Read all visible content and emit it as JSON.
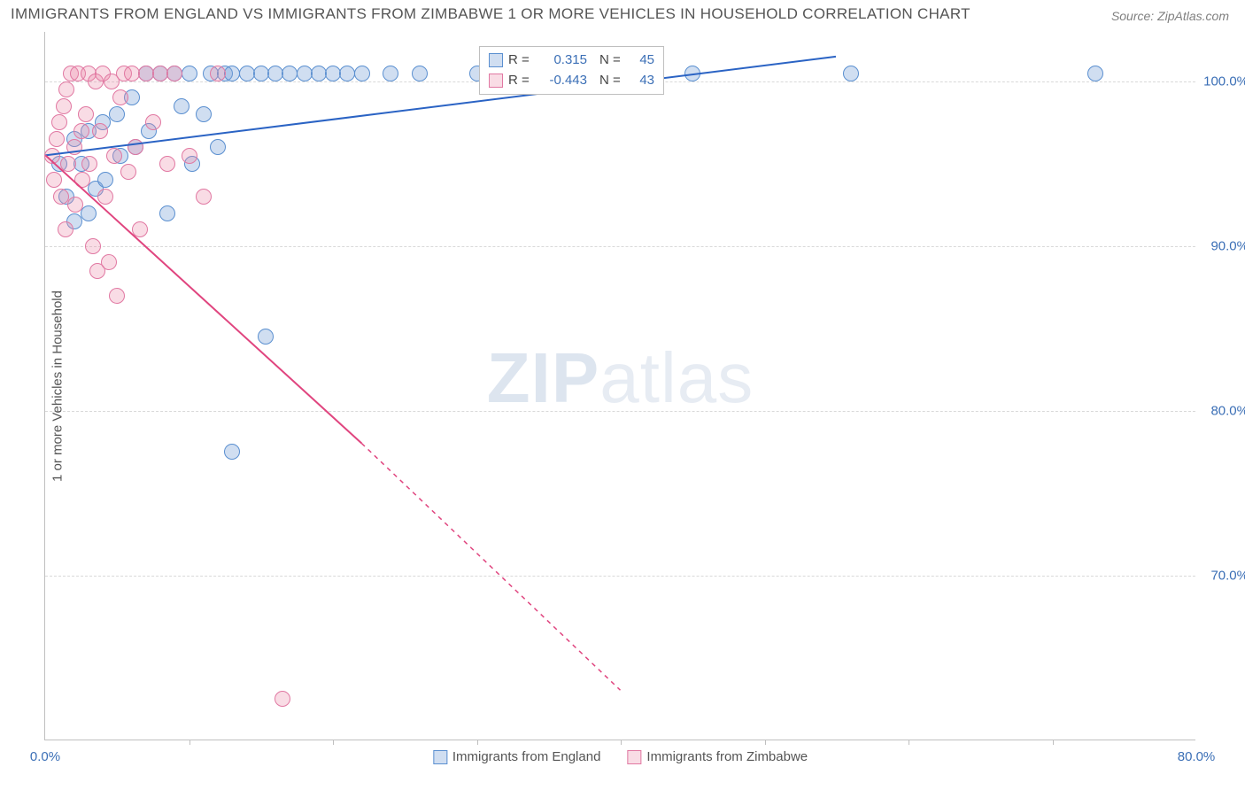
{
  "title": "IMMIGRANTS FROM ENGLAND VS IMMIGRANTS FROM ZIMBABWE 1 OR MORE VEHICLES IN HOUSEHOLD CORRELATION CHART",
  "source": "Source: ZipAtlas.com",
  "ylabel": "1 or more Vehicles in Household",
  "watermark_a": "ZIP",
  "watermark_b": "atlas",
  "chart": {
    "type": "scatter",
    "xlim": [
      0,
      80
    ],
    "ylim": [
      60,
      103
    ],
    "xticks": [
      0,
      80
    ],
    "xtick_labels": [
      "0.0%",
      "80.0%"
    ],
    "xminor_step": 10,
    "yticks": [
      70,
      80,
      90,
      100
    ],
    "ytick_labels": [
      "70.0%",
      "80.0%",
      "90.0%",
      "100.0%"
    ],
    "grid_color": "#d9d9d9",
    "axis_color": "#bfbfbf",
    "tick_label_color": "#3b6fb6",
    "background_color": "#ffffff"
  },
  "series": [
    {
      "id": "england",
      "label": "Immigrants from England",
      "fill": "rgba(120,160,215,0.35)",
      "stroke": "#5a8fd0",
      "line_stroke": "#2a63c4",
      "r_label": "R =",
      "r_value": "0.315",
      "n_label": "N =",
      "n_value": "45",
      "trend": {
        "x1": 0,
        "y1": 95.5,
        "x2": 55,
        "y2": 101.5,
        "dash_after_x": 80
      },
      "marker_r": 9,
      "points": [
        [
          1,
          95
        ],
        [
          1.5,
          93
        ],
        [
          2,
          96.5
        ],
        [
          2.5,
          95
        ],
        [
          3,
          97
        ],
        [
          3,
          92
        ],
        [
          3.5,
          93.5
        ],
        [
          4,
          97.5
        ],
        [
          4.2,
          94
        ],
        [
          5,
          98
        ],
        [
          5.2,
          95.5
        ],
        [
          6,
          99
        ],
        [
          6.3,
          96
        ],
        [
          7,
          100.5
        ],
        [
          7.2,
          97
        ],
        [
          8,
          100.5
        ],
        [
          8.5,
          92
        ],
        [
          9,
          100.5
        ],
        [
          9.5,
          98.5
        ],
        [
          10,
          100.5
        ],
        [
          10.2,
          95
        ],
        [
          11,
          98
        ],
        [
          11.5,
          100.5
        ],
        [
          12,
          96
        ],
        [
          12.5,
          100.5
        ],
        [
          13,
          100.5
        ],
        [
          14,
          100.5
        ],
        [
          15,
          100.5
        ],
        [
          15.3,
          84.5
        ],
        [
          16,
          100.5
        ],
        [
          17,
          100.5
        ],
        [
          18,
          100.5
        ],
        [
          19,
          100.5
        ],
        [
          20,
          100.5
        ],
        [
          21,
          100.5
        ],
        [
          22,
          100.5
        ],
        [
          24,
          100.5
        ],
        [
          26,
          100.5
        ],
        [
          30,
          100.5
        ],
        [
          33,
          100.5
        ],
        [
          45,
          100.5
        ],
        [
          56,
          100.5
        ],
        [
          73,
          100.5
        ],
        [
          13,
          77.5
        ],
        [
          2,
          91.5
        ]
      ]
    },
    {
      "id": "zimbabwe",
      "label": "Immigrants from Zimbabwe",
      "fill": "rgba(235,140,170,0.30)",
      "stroke": "#e178a2",
      "line_stroke": "#e0457f",
      "r_label": "R =",
      "r_value": "-0.443",
      "n_label": "N =",
      "n_value": "43",
      "trend": {
        "x1": 0,
        "y1": 95.5,
        "x2": 22,
        "y2": 78,
        "dash_after_x": 22,
        "dash_x2": 40,
        "dash_y2": 63
      },
      "marker_r": 9,
      "points": [
        [
          0.5,
          95.5
        ],
        [
          0.6,
          94
        ],
        [
          0.8,
          96.5
        ],
        [
          1,
          97.5
        ],
        [
          1.1,
          93
        ],
        [
          1.3,
          98.5
        ],
        [
          1.4,
          91
        ],
        [
          1.5,
          99.5
        ],
        [
          1.6,
          95
        ],
        [
          1.8,
          100.5
        ],
        [
          2,
          96
        ],
        [
          2.1,
          92.5
        ],
        [
          2.3,
          100.5
        ],
        [
          2.5,
          97
        ],
        [
          2.6,
          94
        ],
        [
          2.8,
          98
        ],
        [
          3,
          100.5
        ],
        [
          3.1,
          95
        ],
        [
          3.3,
          90
        ],
        [
          3.5,
          100
        ],
        [
          3.6,
          88.5
        ],
        [
          3.8,
          97
        ],
        [
          4,
          100.5
        ],
        [
          4.2,
          93
        ],
        [
          4.4,
          89
        ],
        [
          4.6,
          100
        ],
        [
          4.8,
          95.5
        ],
        [
          5,
          87
        ],
        [
          5.2,
          99
        ],
        [
          5.5,
          100.5
        ],
        [
          5.8,
          94.5
        ],
        [
          6,
          100.5
        ],
        [
          6.3,
          96
        ],
        [
          6.6,
          91
        ],
        [
          7,
          100.5
        ],
        [
          7.5,
          97.5
        ],
        [
          8,
          100.5
        ],
        [
          8.5,
          95
        ],
        [
          9,
          100.5
        ],
        [
          10,
          95.5
        ],
        [
          11,
          93
        ],
        [
          12,
          100.5
        ],
        [
          16.5,
          62.5
        ]
      ]
    }
  ],
  "legend_bottom": {
    "items": [
      "Immigrants from England",
      "Immigrants from Zimbabwe"
    ]
  }
}
